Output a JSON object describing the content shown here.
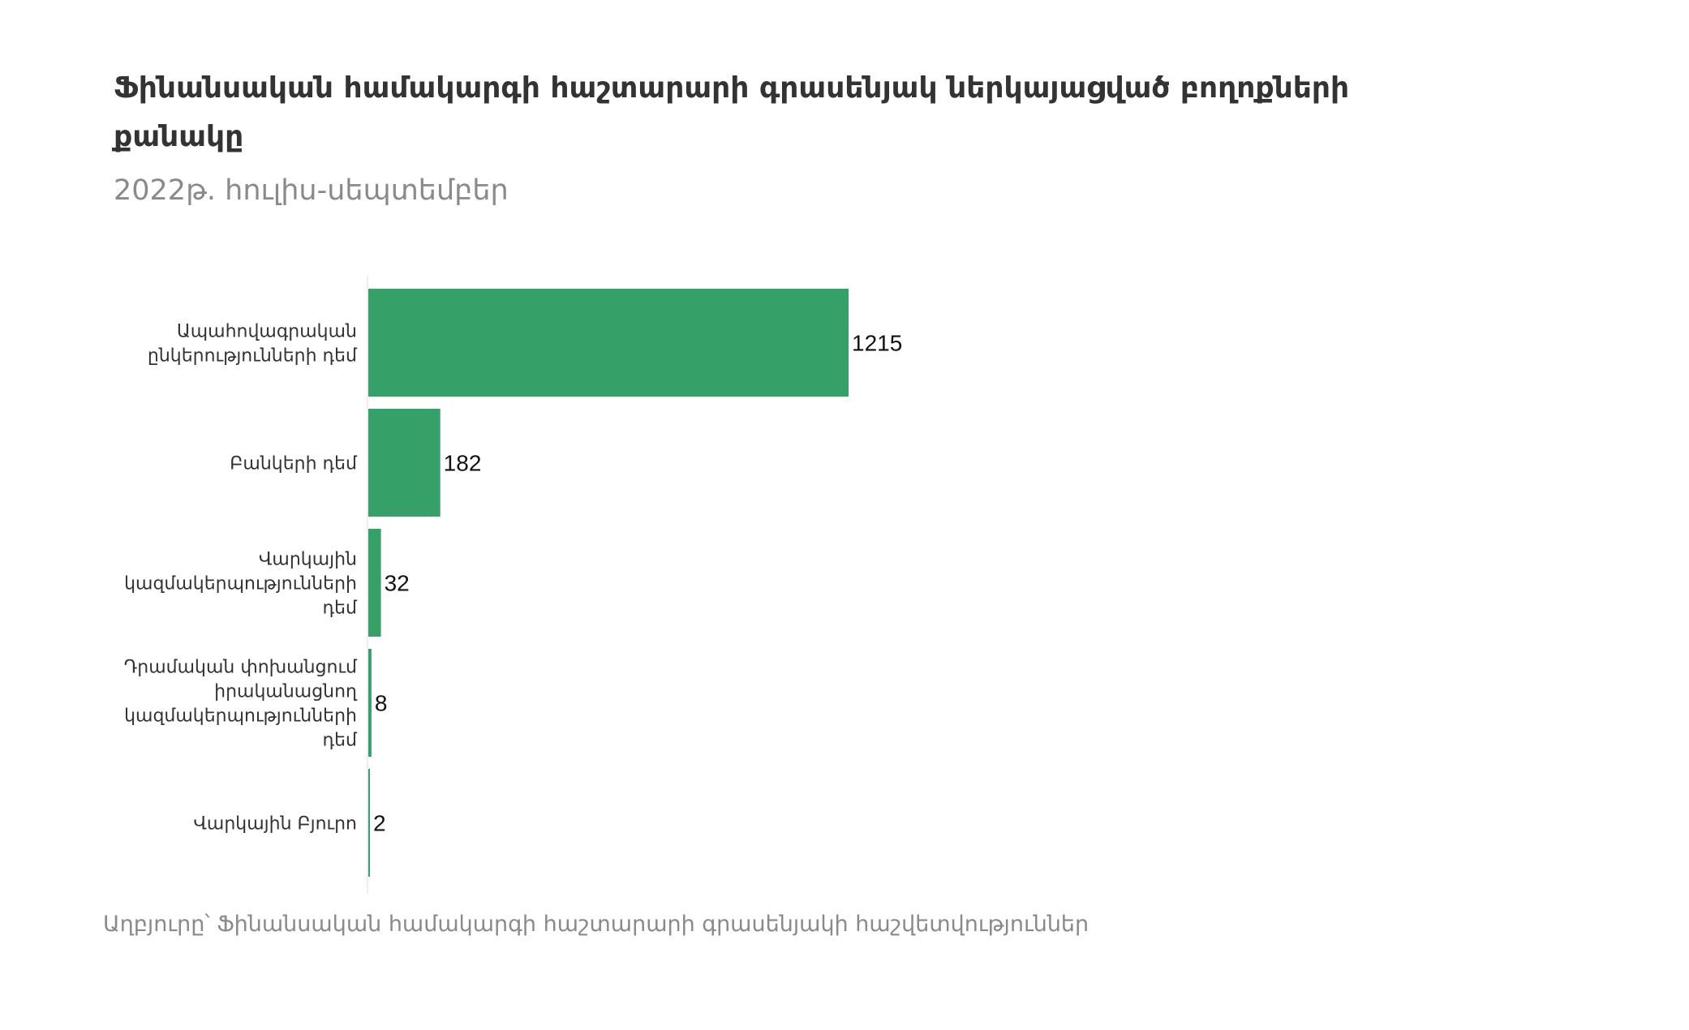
{
  "chart_data": {
    "type": "bar",
    "orientation": "horizontal",
    "title": "Ֆինանսական համակարգի հաշտարարի գրասենյակ ներկայացված բողոքների քանակը",
    "title_lines": [
      "Ֆինանսական համակարգի հաշտարարի գրասենյակ ներկայացված բողոքների",
      "քանակը"
    ],
    "subtitle": "2022թ. հուլիս-սեպտեմբեր",
    "categories": [
      "Ապահովագրական ընկերությունների դեմ",
      "Բանկերի դեմ",
      "Վարկային կազմակերպությունների դեմ",
      "Դրամական փոխանցում իրականացնող կազմակերպությունների դեմ",
      "Վարկային Բյուրո"
    ],
    "category_lines": [
      [
        "Ապահովագրական",
        "ընկերությունների դեմ"
      ],
      [
        "Բանկերի դեմ"
      ],
      [
        "Վարկային",
        "կազմակերպությունների",
        "դեմ"
      ],
      [
        "Դրամական փոխանցում",
        "իրականացնող",
        "կազմակերպությունների",
        "դեմ"
      ],
      [
        "Վարկային Բյուրո"
      ]
    ],
    "values": [
      1215,
      182,
      32,
      8,
      2
    ],
    "value_labels": [
      "1215",
      "182",
      "32",
      "8",
      "2"
    ],
    "xlim": [
      0,
      1215
    ],
    "xlabel": "",
    "ylabel": "",
    "grid": false,
    "bar_color": "#35a067",
    "source": "Աղբյուրը՝ Ֆինանսական համակարգի հաշտարարի գրասենյակի հաշվետվություններ"
  }
}
